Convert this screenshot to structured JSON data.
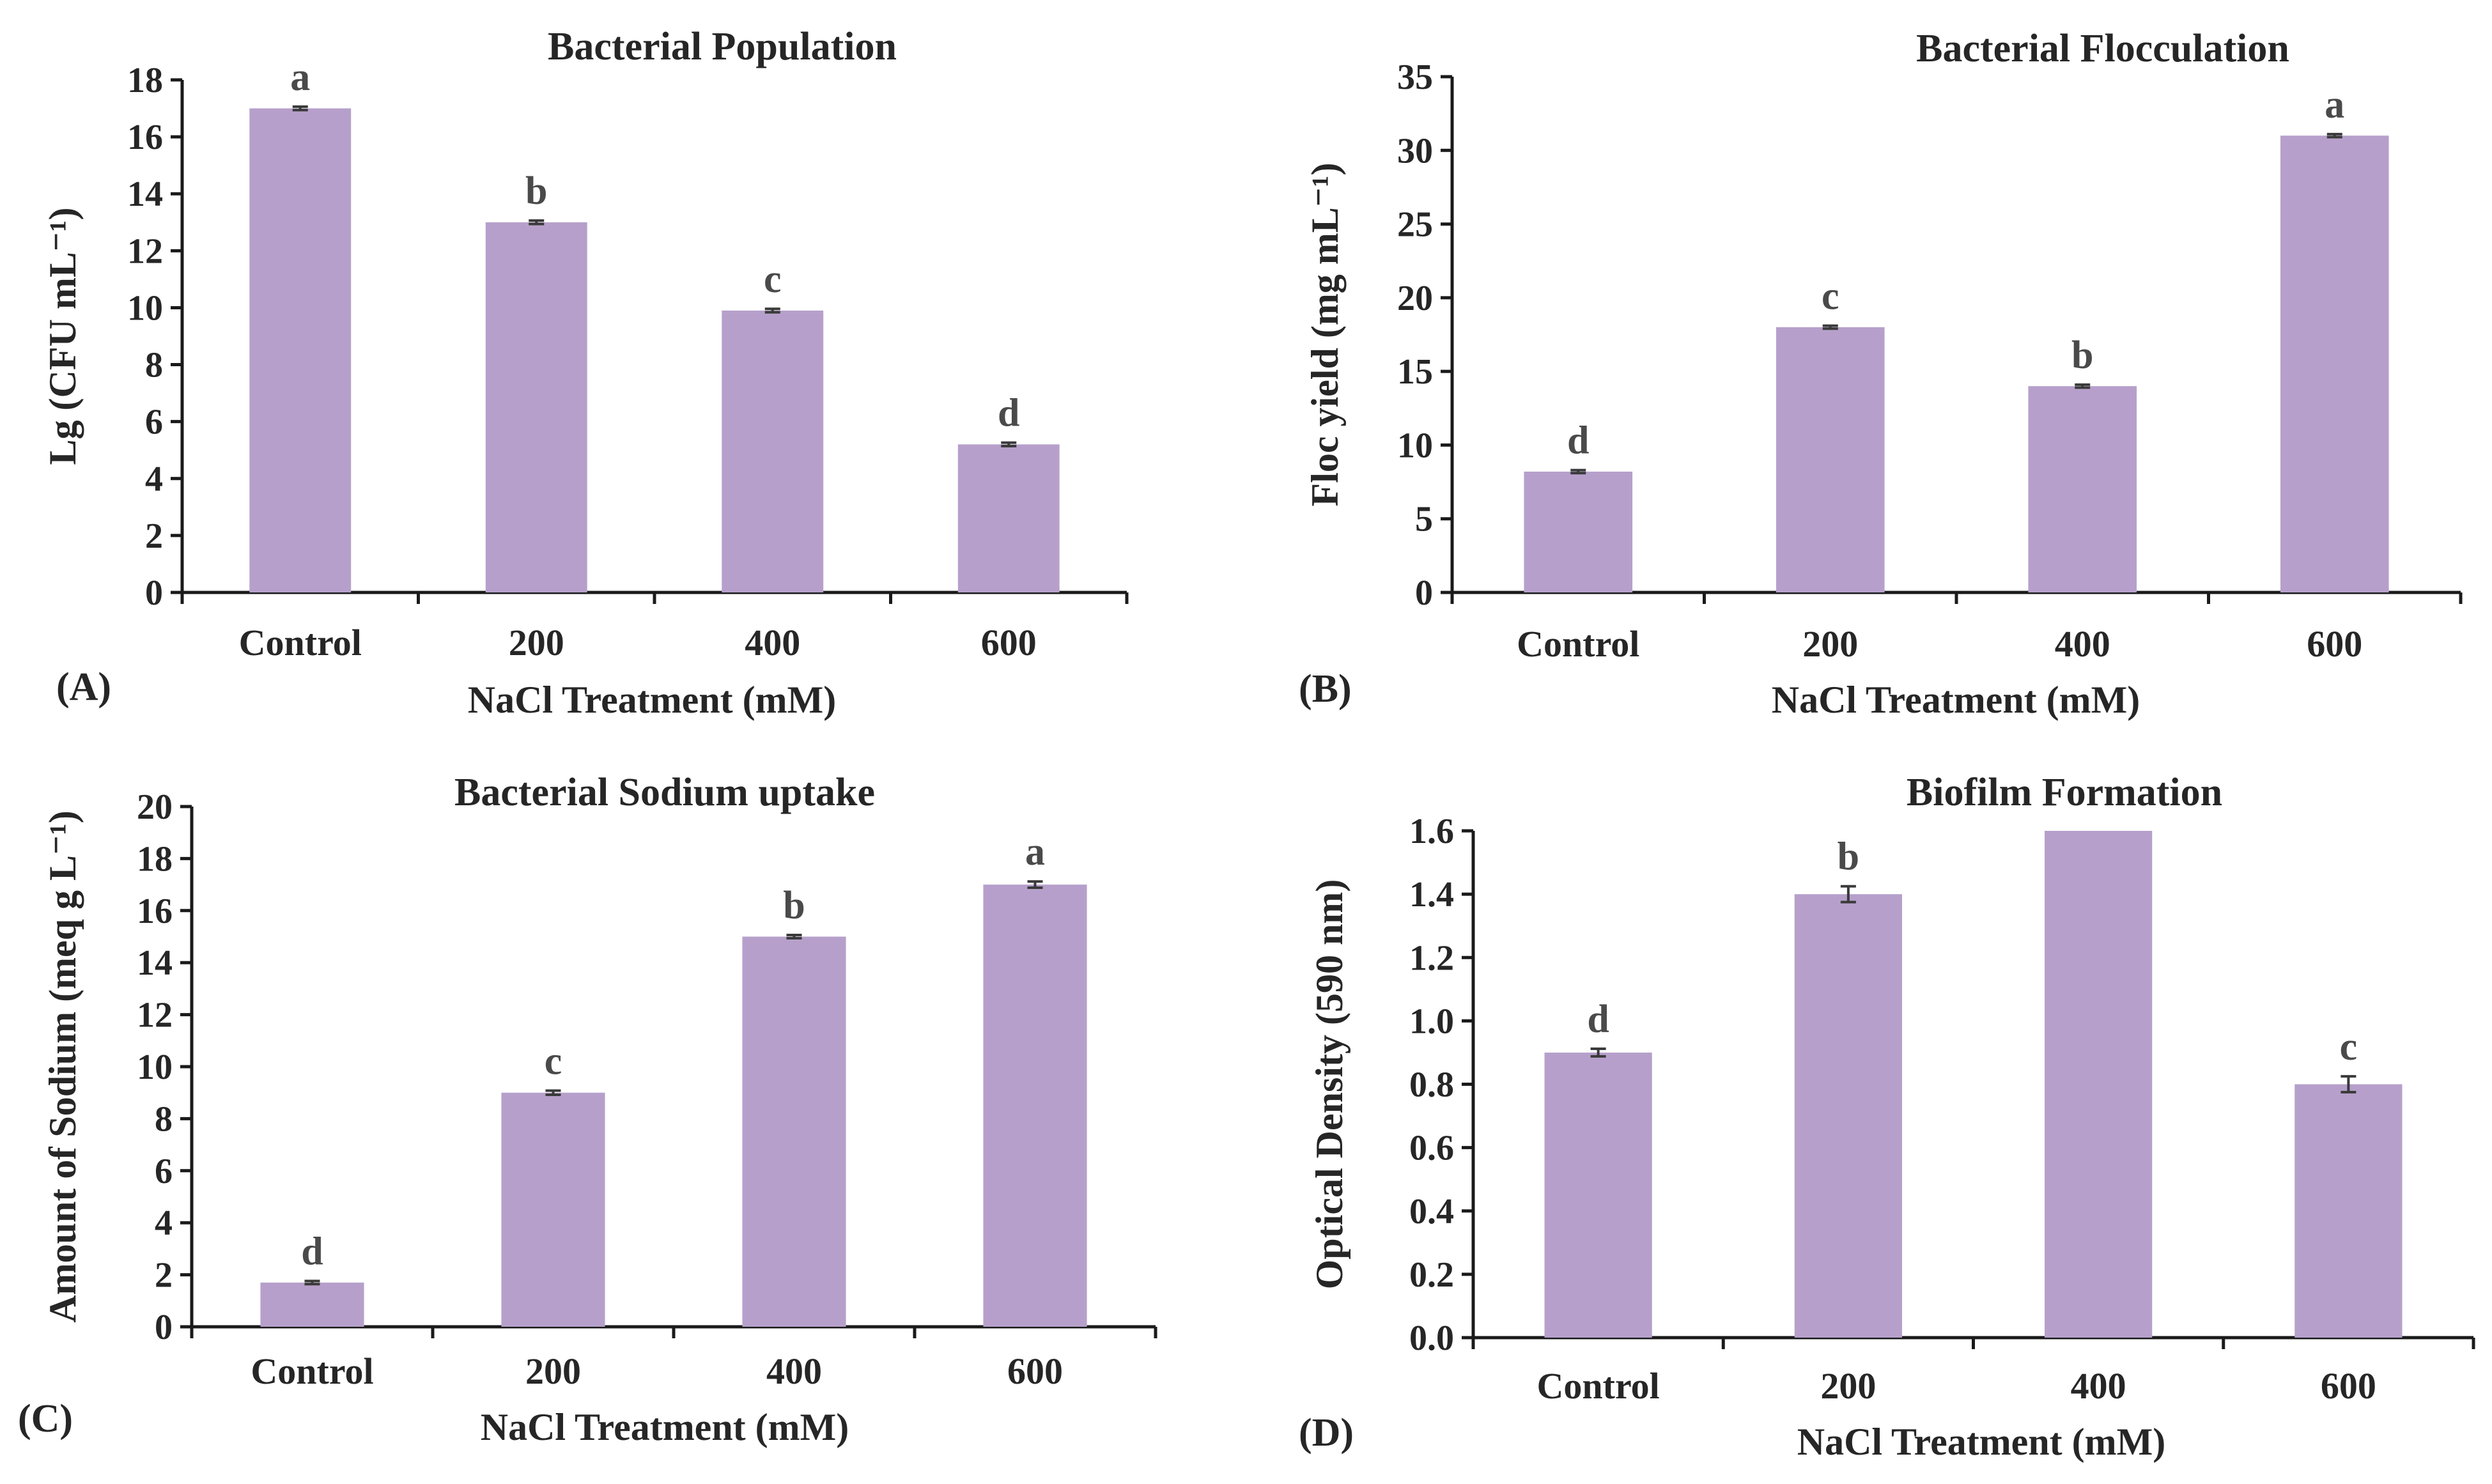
{
  "chart_data": [
    {
      "id": "A",
      "type": "bar",
      "panel_label": "(A)",
      "title": "Bacterial Population",
      "xlabel": "NaCl Treatment (mM)",
      "ylabel": "Lg (CFU mL⁻¹)",
      "categories": [
        "Control",
        "200",
        "400",
        "600"
      ],
      "values": [
        17.0,
        13.0,
        9.9,
        5.2
      ],
      "errors": [
        0.06,
        0.06,
        0.06,
        0.06
      ],
      "letters": [
        "a",
        "b",
        "c",
        "d"
      ],
      "ylim": [
        0,
        18
      ],
      "yticks": [
        "0",
        "2",
        "4",
        "6",
        "8",
        "10",
        "12",
        "14",
        "16",
        "18"
      ],
      "color": "#b6a0cb"
    },
    {
      "id": "B",
      "type": "bar",
      "panel_label": "(B)",
      "title": "Bacterial Flocculation",
      "xlabel": "NaCl Treatment (mM)",
      "ylabel": "Floc yield (mg mL⁻¹)",
      "categories": [
        "Control",
        "200",
        "400",
        "600"
      ],
      "values": [
        8.2,
        18.0,
        14.0,
        31.0
      ],
      "errors": [
        0.1,
        0.1,
        0.1,
        0.1
      ],
      "letters": [
        "d",
        "c",
        "b",
        "a"
      ],
      "ylim": [
        0,
        35
      ],
      "yticks": [
        "0",
        "5",
        "10",
        "15",
        "20",
        "25",
        "30",
        "35"
      ],
      "color": "#b6a0cb"
    },
    {
      "id": "C",
      "type": "bar",
      "panel_label": "(C)",
      "title": "Bacterial Sodium uptake",
      "xlabel": "NaCl Treatment (mM)",
      "ylabel": "Amount of Sodium (meq g L⁻¹)",
      "categories": [
        "Control",
        "200",
        "400",
        "600"
      ],
      "values": [
        1.7,
        9.0,
        15.0,
        17.0
      ],
      "errors": [
        0.06,
        0.08,
        0.06,
        0.12
      ],
      "letters": [
        "d",
        "c",
        "b",
        "a"
      ],
      "ylim": [
        0,
        20
      ],
      "yticks": [
        "0",
        "2",
        "4",
        "6",
        "8",
        "10",
        "12",
        "14",
        "16",
        "18",
        "20"
      ],
      "color": "#b6a0cb"
    },
    {
      "id": "D",
      "type": "bar",
      "panel_label": "(D)",
      "title": "Biofilm Formation",
      "xlabel": "NaCl Treatment (mM)",
      "ylabel": "Optical Density (590 nm)",
      "categories": [
        "Control",
        "200",
        "400",
        "600"
      ],
      "values": [
        0.9,
        1.4,
        1.6,
        0.8
      ],
      "errors": [
        0.012,
        0.025,
        0.0,
        0.025
      ],
      "letters": [
        "d",
        "b",
        "",
        "c"
      ],
      "ylim": [
        0,
        1.6
      ],
      "yticks": [
        "0.0",
        "0.2",
        "0.4",
        "0.6",
        "0.8",
        "1.0",
        "1.2",
        "1.4",
        "1.6"
      ],
      "color": "#b6a0cb"
    }
  ]
}
